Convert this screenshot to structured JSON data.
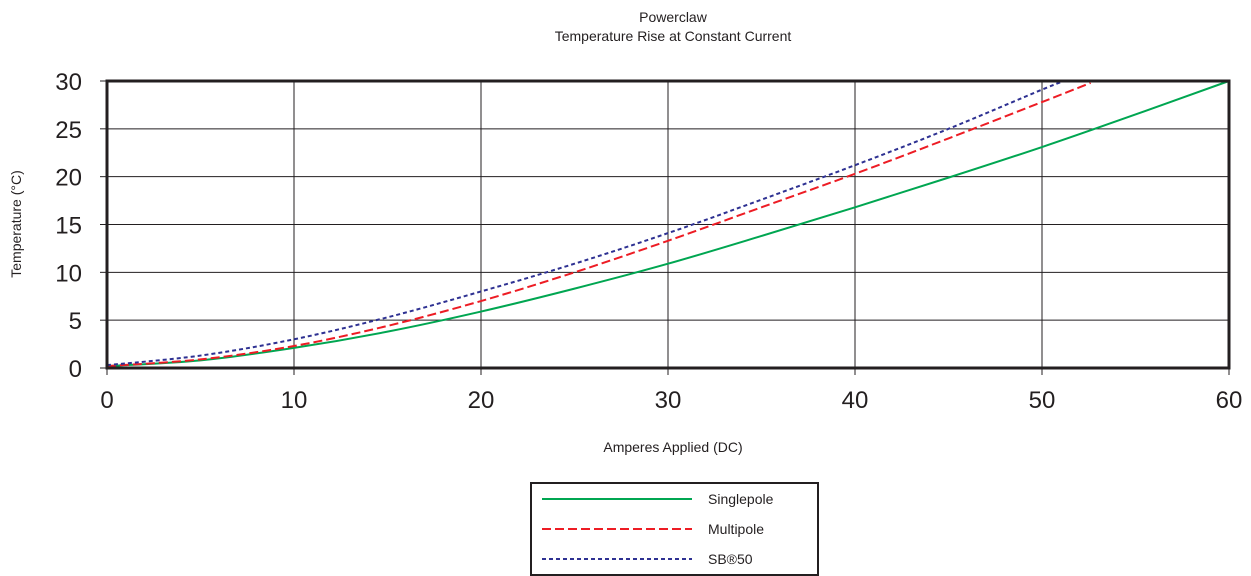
{
  "chart_data": {
    "type": "line",
    "title": "Powerclaw",
    "subtitle": "Temperature Rise at Constant Current",
    "xlabel": "Amperes Applied (DC)",
    "ylabel": "Temperature (°C)",
    "xlim": [
      0,
      60
    ],
    "ylim": [
      0,
      30
    ],
    "x_ticks": [
      "0",
      "10",
      "20",
      "30",
      "40",
      "50",
      "60"
    ],
    "y_ticks": [
      "0",
      "5",
      "10",
      "15",
      "20",
      "25",
      "30"
    ],
    "grid": true,
    "legend_position": "bottom-center",
    "series": [
      {
        "name": "Singlepole",
        "color": "#00a651",
        "line_style": "solid",
        "x": [
          0,
          5,
          10,
          15,
          20,
          25,
          30,
          35,
          40,
          45,
          50,
          55,
          60
        ],
        "y": [
          0.2,
          0.8,
          2.1,
          3.8,
          5.9,
          8.3,
          10.9,
          13.8,
          16.8,
          19.9,
          23.1,
          26.5,
          30.0
        ]
      },
      {
        "name": "Multipole",
        "color": "#ed1c24",
        "line_style": "dashed",
        "x": [
          0,
          5,
          10,
          15,
          20,
          25,
          30,
          35,
          40,
          45,
          50,
          52.6
        ],
        "y": [
          0.2,
          0.9,
          2.3,
          4.4,
          7.0,
          10.0,
          13.3,
          16.8,
          20.3,
          24.0,
          27.8,
          29.8
        ]
      },
      {
        "name": "SB®50",
        "color": "#2e3192",
        "line_style": "dotted",
        "x": [
          0,
          5,
          10,
          15,
          20,
          25,
          30,
          35,
          40,
          45,
          50,
          51.2
        ],
        "y": [
          0.3,
          1.3,
          3.0,
          5.3,
          8.0,
          10.9,
          14.1,
          17.6,
          21.2,
          25.0,
          29.1,
          30.0
        ]
      }
    ]
  }
}
